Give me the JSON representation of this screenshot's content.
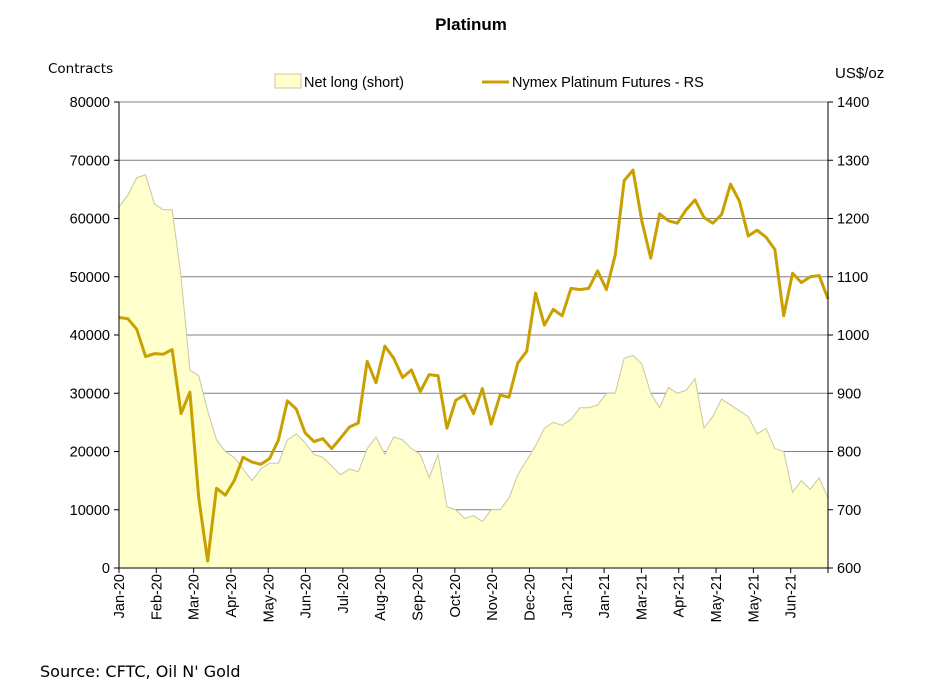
{
  "chart_data": {
    "type": "area+line",
    "title": "Platinum",
    "left_axis_label": "Contracts",
    "right_axis_label": "US$/oz",
    "left_ylim": [
      0,
      80000
    ],
    "left_ticks": [
      0,
      10000,
      20000,
      30000,
      40000,
      50000,
      60000,
      70000,
      80000
    ],
    "right_ylim": [
      600,
      1400
    ],
    "right_ticks": [
      600,
      700,
      800,
      900,
      1000,
      1100,
      1200,
      1300,
      1400
    ],
    "x_tick_labels": [
      "Jan-20",
      "Feb-20",
      "Mar-20",
      "Apr-20",
      "May-20",
      "Jun-20",
      "Jul-20",
      "Aug-20",
      "Sep-20",
      "Oct-20",
      "Nov-20",
      "Dec-20",
      "Jan-21",
      "Jan-21",
      "Mar-21",
      "Apr-21",
      "May-21",
      "May-21",
      "Jun-21"
    ],
    "grid": true,
    "legend_position": "top",
    "series": [
      {
        "name": "Net long (short)",
        "kind": "area",
        "axis": "left",
        "color": "#ffffcc",
        "edge_color": "#c8c8a0",
        "values": [
          62000,
          64000,
          67000,
          67500,
          62500,
          61500,
          61500,
          50000,
          34000,
          33000,
          27000,
          22000,
          20000,
          19000,
          17000,
          15000,
          17000,
          18000,
          18000,
          22000,
          23000,
          21500,
          19500,
          19000,
          17500,
          16000,
          17000,
          16500,
          20500,
          22500,
          19500,
          22500,
          22000,
          20500,
          19500,
          15500,
          19500,
          10500,
          10000,
          8500,
          9000,
          8000,
          10000,
          10000,
          12000,
          16000,
          18500,
          21000,
          24000,
          25000,
          24500,
          25500,
          27500,
          27500,
          28000,
          30000,
          30000,
          36000,
          36500,
          35000,
          30000,
          27500,
          31000,
          30000,
          30500,
          32500,
          24000,
          26000,
          29000,
          28000,
          27000,
          26000,
          23000,
          24000,
          20500,
          20000,
          13000,
          15000,
          13500,
          15500,
          12000
        ]
      },
      {
        "name": "Nymex Platinum Futures - RS",
        "kind": "line",
        "axis": "right",
        "color": "#c8a000",
        "values": [
          1030,
          1028,
          1010,
          963,
          968,
          967,
          975,
          865,
          902,
          720,
          612,
          737,
          725,
          750,
          790,
          782,
          778,
          788,
          820,
          887,
          873,
          832,
          817,
          822,
          805,
          823,
          842,
          849,
          955,
          918,
          981,
          960,
          927,
          940,
          903,
          932,
          930,
          840,
          888,
          897,
          865,
          908,
          847,
          897,
          893,
          952,
          972,
          1072,
          1017,
          1044,
          1033,
          1080,
          1078,
          1080,
          1110,
          1078,
          1138,
          1265,
          1283,
          1195,
          1132,
          1208,
          1196,
          1192,
          1215,
          1232,
          1202,
          1192,
          1207,
          1259,
          1230,
          1170,
          1180,
          1168,
          1147,
          1033,
          1106,
          1090,
          1100,
          1102,
          1062
        ]
      }
    ]
  },
  "footer": {
    "source": "Source: CFTC, Oil N' Gold"
  }
}
